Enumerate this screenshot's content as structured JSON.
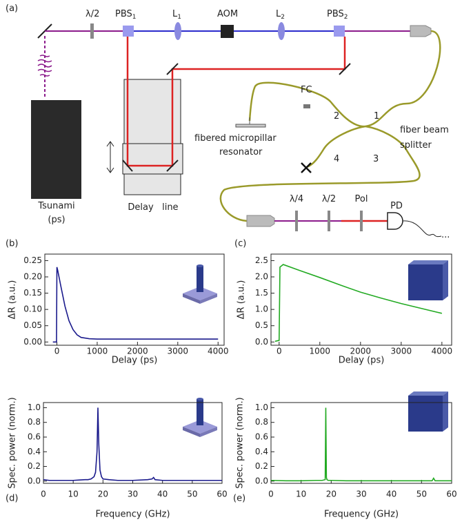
{
  "diagram": {
    "panel_label": "(a)",
    "labels": [
      {
        "text": "λ/2"
      },
      {
        "text": "PBS",
        "sub": "1"
      },
      {
        "text": "L",
        "sub": "1"
      },
      {
        "text": "AOM"
      },
      {
        "text": "L",
        "sub": "2"
      },
      {
        "text": "PBS",
        "sub": "2"
      },
      {
        "text": "FC"
      },
      {
        "text": "2"
      },
      {
        "text": "1"
      },
      {
        "text": "fibered micropillar"
      },
      {
        "text": "resonator"
      },
      {
        "text": "fiber beam"
      },
      {
        "text": "splitter"
      },
      {
        "text": "4"
      },
      {
        "text": "3"
      },
      {
        "text": "Tsunami"
      },
      {
        "text": "(ps)"
      },
      {
        "text": "Delay   line"
      },
      {
        "text": "λ/4"
      },
      {
        "text": "λ/2"
      },
      {
        "text": "Pol"
      },
      {
        "text": "PD"
      },
      {
        "text": "..."
      }
    ]
  },
  "chart_data": [
    {
      "type": "line",
      "panel_label": "(b)",
      "xlabel": "Delay (ps)",
      "ylabel": "ΔR (a.u.)",
      "color": "#1a1a8c",
      "x": [
        -100,
        -10,
        0,
        20,
        100,
        200,
        300,
        400,
        500,
        600,
        800,
        1000,
        2000,
        3000,
        4000
      ],
      "values": [
        0.0,
        0.0,
        0.23,
        0.22,
        0.17,
        0.11,
        0.065,
        0.038,
        0.022,
        0.014,
        0.01,
        0.009,
        0.009,
        0.009,
        0.009
      ],
      "xlim": [
        -300,
        4150
      ],
      "ylim": [
        -0.01,
        0.27
      ],
      "xticks": [
        0,
        1000,
        2000,
        3000,
        4000
      ],
      "yticks": [
        {
          "value": 0,
          "label": "0.00"
        },
        0.05,
        {
          "value": 0.1,
          "label": "0.10"
        },
        0.15,
        {
          "value": 0.2,
          "label": "0.20"
        },
        0.25
      ]
    },
    {
      "type": "line",
      "panel_label": "(c)",
      "xlabel": "Delay (ps)",
      "ylabel": "ΔR (a.u.)",
      "color": "#22aa22",
      "x": [
        -100,
        0,
        20,
        100,
        500,
        1000,
        1500,
        2000,
        2500,
        3000,
        3500,
        4000
      ],
      "values": [
        0.02,
        0.05,
        2.3,
        2.38,
        2.2,
        1.98,
        1.75,
        1.53,
        1.35,
        1.18,
        1.03,
        0.88
      ],
      "xlim": [
        -200,
        4240
      ],
      "ylim": [
        -0.1,
        2.7
      ],
      "xticks": [
        0,
        1000,
        2000,
        3000,
        4000
      ],
      "yticks": [
        {
          "value": 0,
          "label": "0.0"
        },
        0.5,
        {
          "value": 1,
          "label": "1.0"
        },
        1.5,
        {
          "value": 2,
          "label": "2.0"
        },
        2.5
      ]
    },
    {
      "type": "line",
      "panel_label": "(d)",
      "xlabel": "Frequency (GHz)",
      "ylabel": "Spec. power (norm.)",
      "color": "#1a1a8c",
      "x": [
        0,
        2,
        5,
        8,
        10,
        12,
        14,
        15,
        16,
        17,
        17.5,
        18,
        18.3,
        18.6,
        19,
        19.5,
        20,
        22,
        25,
        30,
        35,
        36.5,
        37,
        37.5,
        40,
        45,
        50,
        55,
        60
      ],
      "values": [
        0.02,
        0.01,
        0.01,
        0.01,
        0.01,
        0.015,
        0.02,
        0.02,
        0.03,
        0.06,
        0.12,
        0.4,
        1.0,
        0.5,
        0.15,
        0.06,
        0.03,
        0.02,
        0.01,
        0.01,
        0.02,
        0.03,
        0.05,
        0.02,
        0.01,
        0.01,
        0.01,
        0.01,
        0.01
      ],
      "xlim": [
        0,
        60
      ],
      "ylim": [
        -0.03,
        1.07
      ],
      "xticks": [
        0,
        10,
        20,
        30,
        40,
        50,
        60
      ],
      "yticks": [
        {
          "value": 0,
          "label": "0.0"
        },
        0.2,
        0.4,
        0.6,
        0.8,
        {
          "value": 1,
          "label": "1.0"
        }
      ]
    },
    {
      "type": "line",
      "panel_label": "(e)",
      "xlabel": "Frequency (GHz)",
      "ylabel": "Spec. power (norm.)",
      "color": "#22aa22",
      "x": [
        0,
        5,
        10,
        15,
        17,
        18,
        18.2,
        18.4,
        18.6,
        19,
        20,
        25,
        30,
        35,
        40,
        45,
        50,
        53.5,
        54,
        54.5,
        55,
        60
      ],
      "values": [
        0.01,
        0.005,
        0.005,
        0.01,
        0.01,
        0.02,
        1.0,
        0.05,
        0.02,
        0.01,
        0.01,
        0.005,
        0.005,
        0.005,
        0.005,
        0.005,
        0.005,
        0.005,
        0.04,
        0.005,
        0.005,
        0.005
      ],
      "xlim": [
        0,
        60
      ],
      "ylim": [
        -0.03,
        1.07
      ],
      "xticks": [
        0,
        10,
        20,
        30,
        40,
        50,
        60
      ],
      "yticks": [
        {
          "value": 0,
          "label": "0.0"
        },
        0.2,
        0.4,
        0.6,
        0.8,
        {
          "value": 1,
          "label": "1.0"
        }
      ]
    }
  ]
}
